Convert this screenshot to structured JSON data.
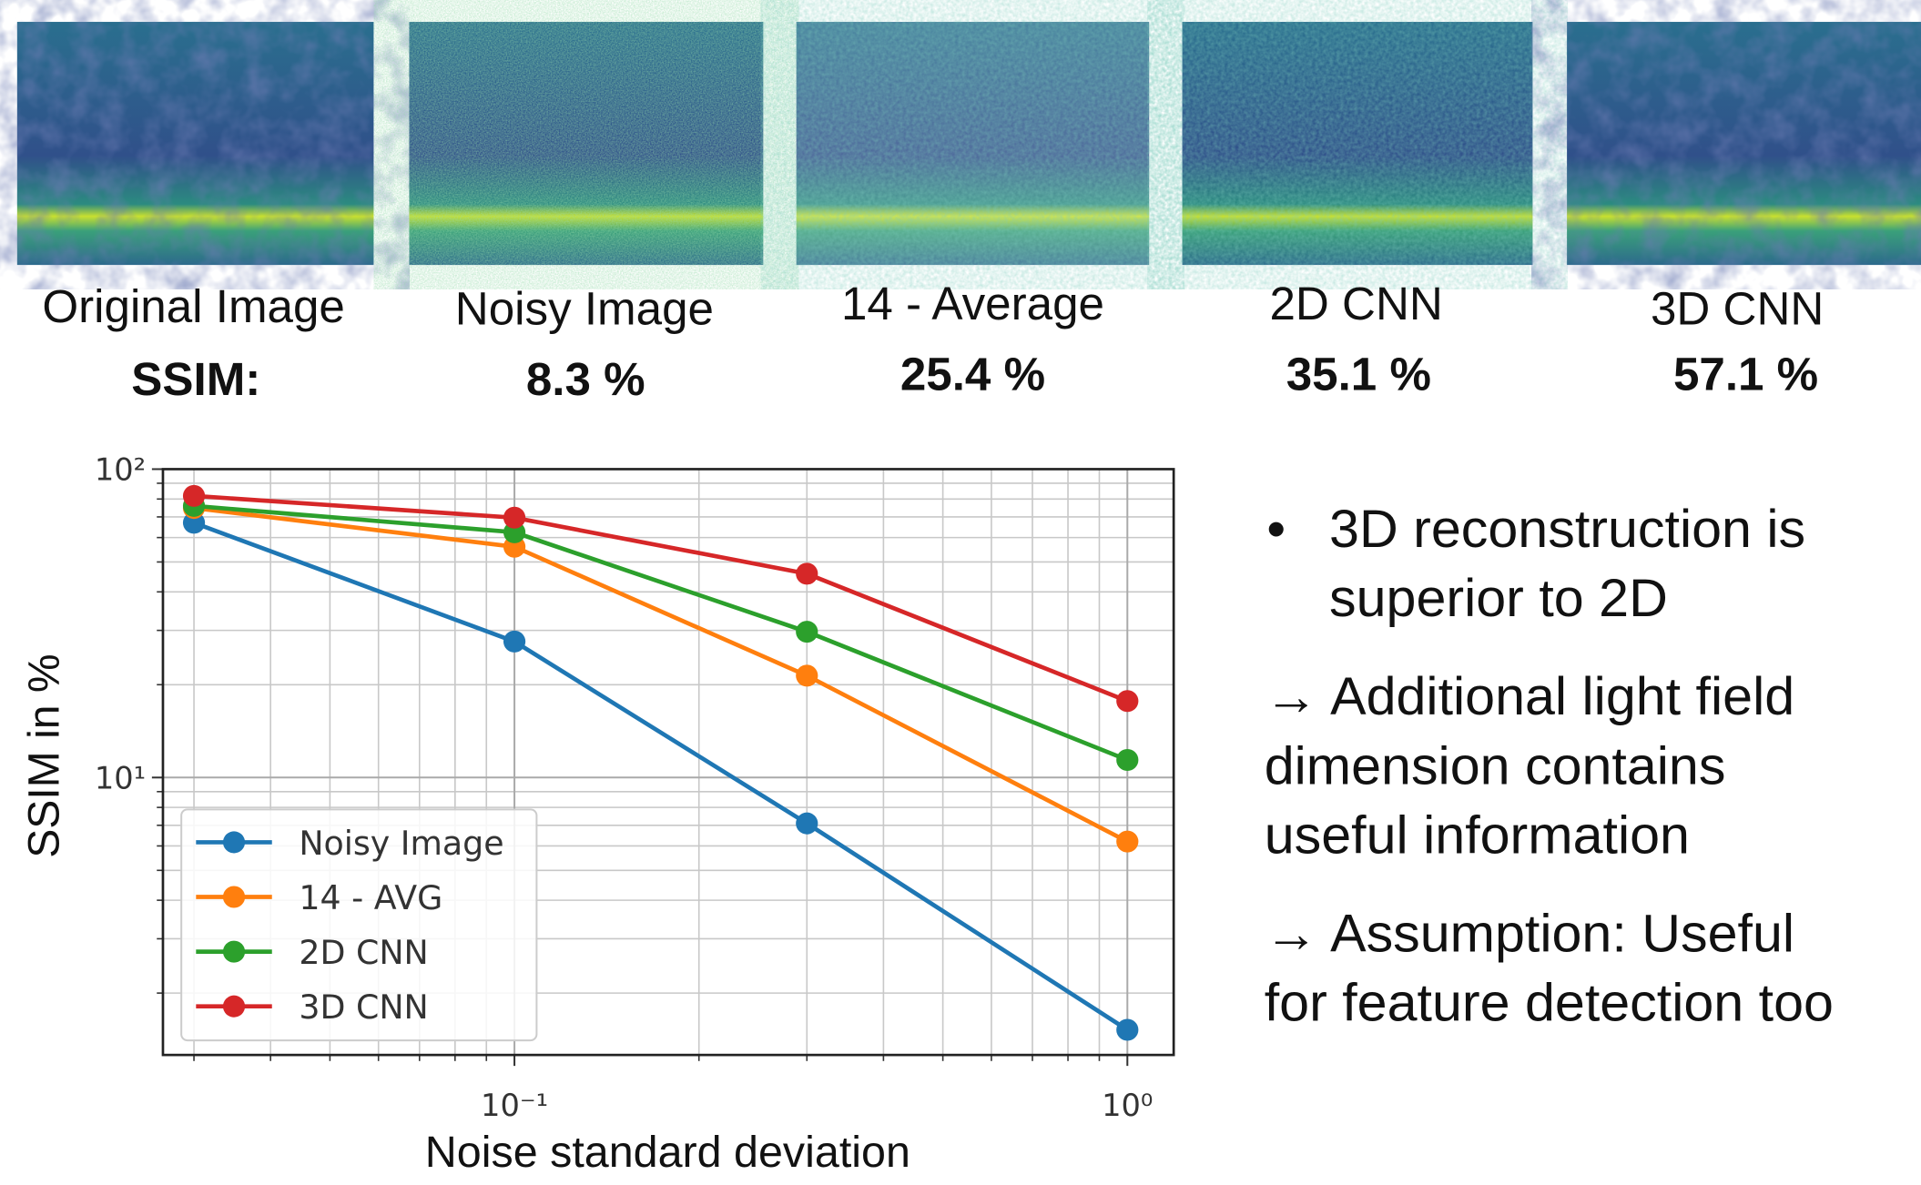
{
  "panels": [
    {
      "label": "Original Image",
      "ssim": "SSIM:"
    },
    {
      "label": "Noisy Image",
      "ssim": "8.3 %"
    },
    {
      "label": "14 - Average",
      "ssim": "25.4 %"
    },
    {
      "label": "2D CNN",
      "ssim": "35.1 %"
    },
    {
      "label": "3D CNN",
      "ssim": "57.1 %"
    }
  ],
  "chart_data": {
    "type": "line",
    "x_label": "Noise standard deviation",
    "y_label": "SSIM in %",
    "x": [
      0.03,
      0.1,
      0.3,
      1
    ],
    "series": [
      {
        "name": "Noisy Image",
        "color": "#1f77b4",
        "values": [
          67,
          27.6,
          7.1,
          1.52
        ]
      },
      {
        "name": "14 - AVG",
        "color": "#ff7f0e",
        "values": [
          74.8,
          56,
          21.4,
          6.2
        ]
      },
      {
        "name": "2D CNN",
        "color": "#2ca02c",
        "values": [
          76,
          62.4,
          29.7,
          11.4
        ]
      },
      {
        "name": "3D CNN",
        "color": "#d62728",
        "values": [
          81.9,
          69.6,
          45.8,
          17.7
        ]
      }
    ],
    "xlog": true,
    "ylog": true,
    "xlim": [
      0.0267,
      1.19
    ],
    "ylim": [
      1.26,
      100
    ],
    "xticks": [
      {
        "value": 0.1,
        "label": "10⁻¹"
      },
      {
        "value": 1,
        "label": "10⁰"
      }
    ],
    "yticks": [
      {
        "value": 10,
        "label": "10¹"
      },
      {
        "value": 100,
        "label": "10²"
      }
    ],
    "xminorticks": [
      0.03,
      0.04,
      0.05,
      0.06,
      0.07,
      0.08,
      0.09,
      0.2,
      0.3,
      0.4,
      0.5,
      0.6,
      0.7,
      0.8,
      0.9
    ],
    "yminorticks": [
      2,
      3,
      4,
      5,
      6,
      7,
      8,
      9,
      20,
      30,
      40,
      50,
      60,
      70,
      80,
      90
    ],
    "grid": true,
    "legend": "lower left"
  },
  "bullets": [
    {
      "marker": "•",
      "lines": [
        "3D reconstruction is",
        "superior to 2D"
      ]
    },
    {
      "lines": [
        "→ Additional light field",
        "dimension contains",
        "useful information"
      ]
    },
    {
      "lines": [
        "→ Assumption: Useful",
        "for feature detection too"
      ]
    }
  ]
}
